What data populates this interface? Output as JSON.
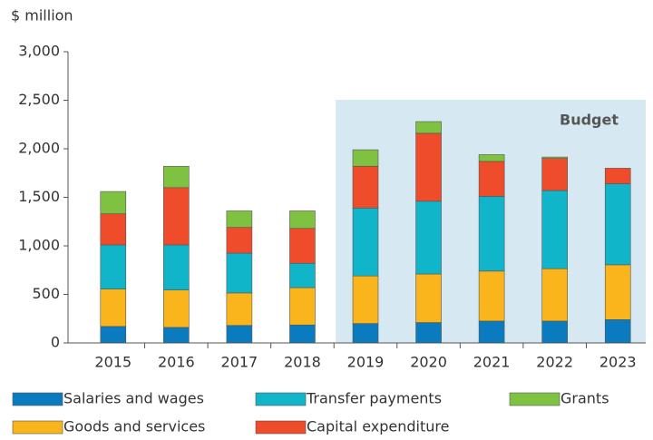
{
  "chart_data": {
    "type": "stacked_bar",
    "y_label": "$ million",
    "categories": [
      "2015",
      "2016",
      "2017",
      "2018",
      "2019",
      "2020",
      "2021",
      "2022",
      "2023"
    ],
    "series": [
      {
        "name": "Salaries and wages",
        "color": "#0a7bbf",
        "values": [
          170,
          160,
          180,
          185,
          200,
          210,
          225,
          225,
          240
        ]
      },
      {
        "name": "Goods and services",
        "color": "#f9b51b",
        "values": [
          385,
          385,
          335,
          385,
          490,
          500,
          515,
          540,
          565
        ]
      },
      {
        "name": "Transfer payments",
        "color": "#11b5c9",
        "values": [
          455,
          465,
          410,
          250,
          700,
          750,
          770,
          805,
          835
        ]
      },
      {
        "name": "Capital expenditure",
        "color": "#ee4c2a",
        "values": [
          320,
          590,
          265,
          360,
          430,
          700,
          360,
          330,
          160
        ]
      },
      {
        "name": "Grants",
        "color": "#7fc241",
        "values": [
          230,
          220,
          170,
          180,
          170,
          120,
          70,
          15,
          0
        ]
      }
    ],
    "ylim": [
      0,
      3000
    ],
    "yticks": [
      0,
      500,
      {
        "value": 1000,
        "label": "1,000"
      },
      {
        "value": 1500,
        "label": "1,500"
      },
      {
        "value": 2000,
        "label": "2,000"
      },
      {
        "value": 2500,
        "label": "2,500"
      },
      {
        "value": 3000,
        "label": "3,000"
      }
    ],
    "shaded_region": {
      "text": "Budget",
      "from": "2019",
      "to": "2023",
      "color": "#d6e9f3"
    }
  }
}
